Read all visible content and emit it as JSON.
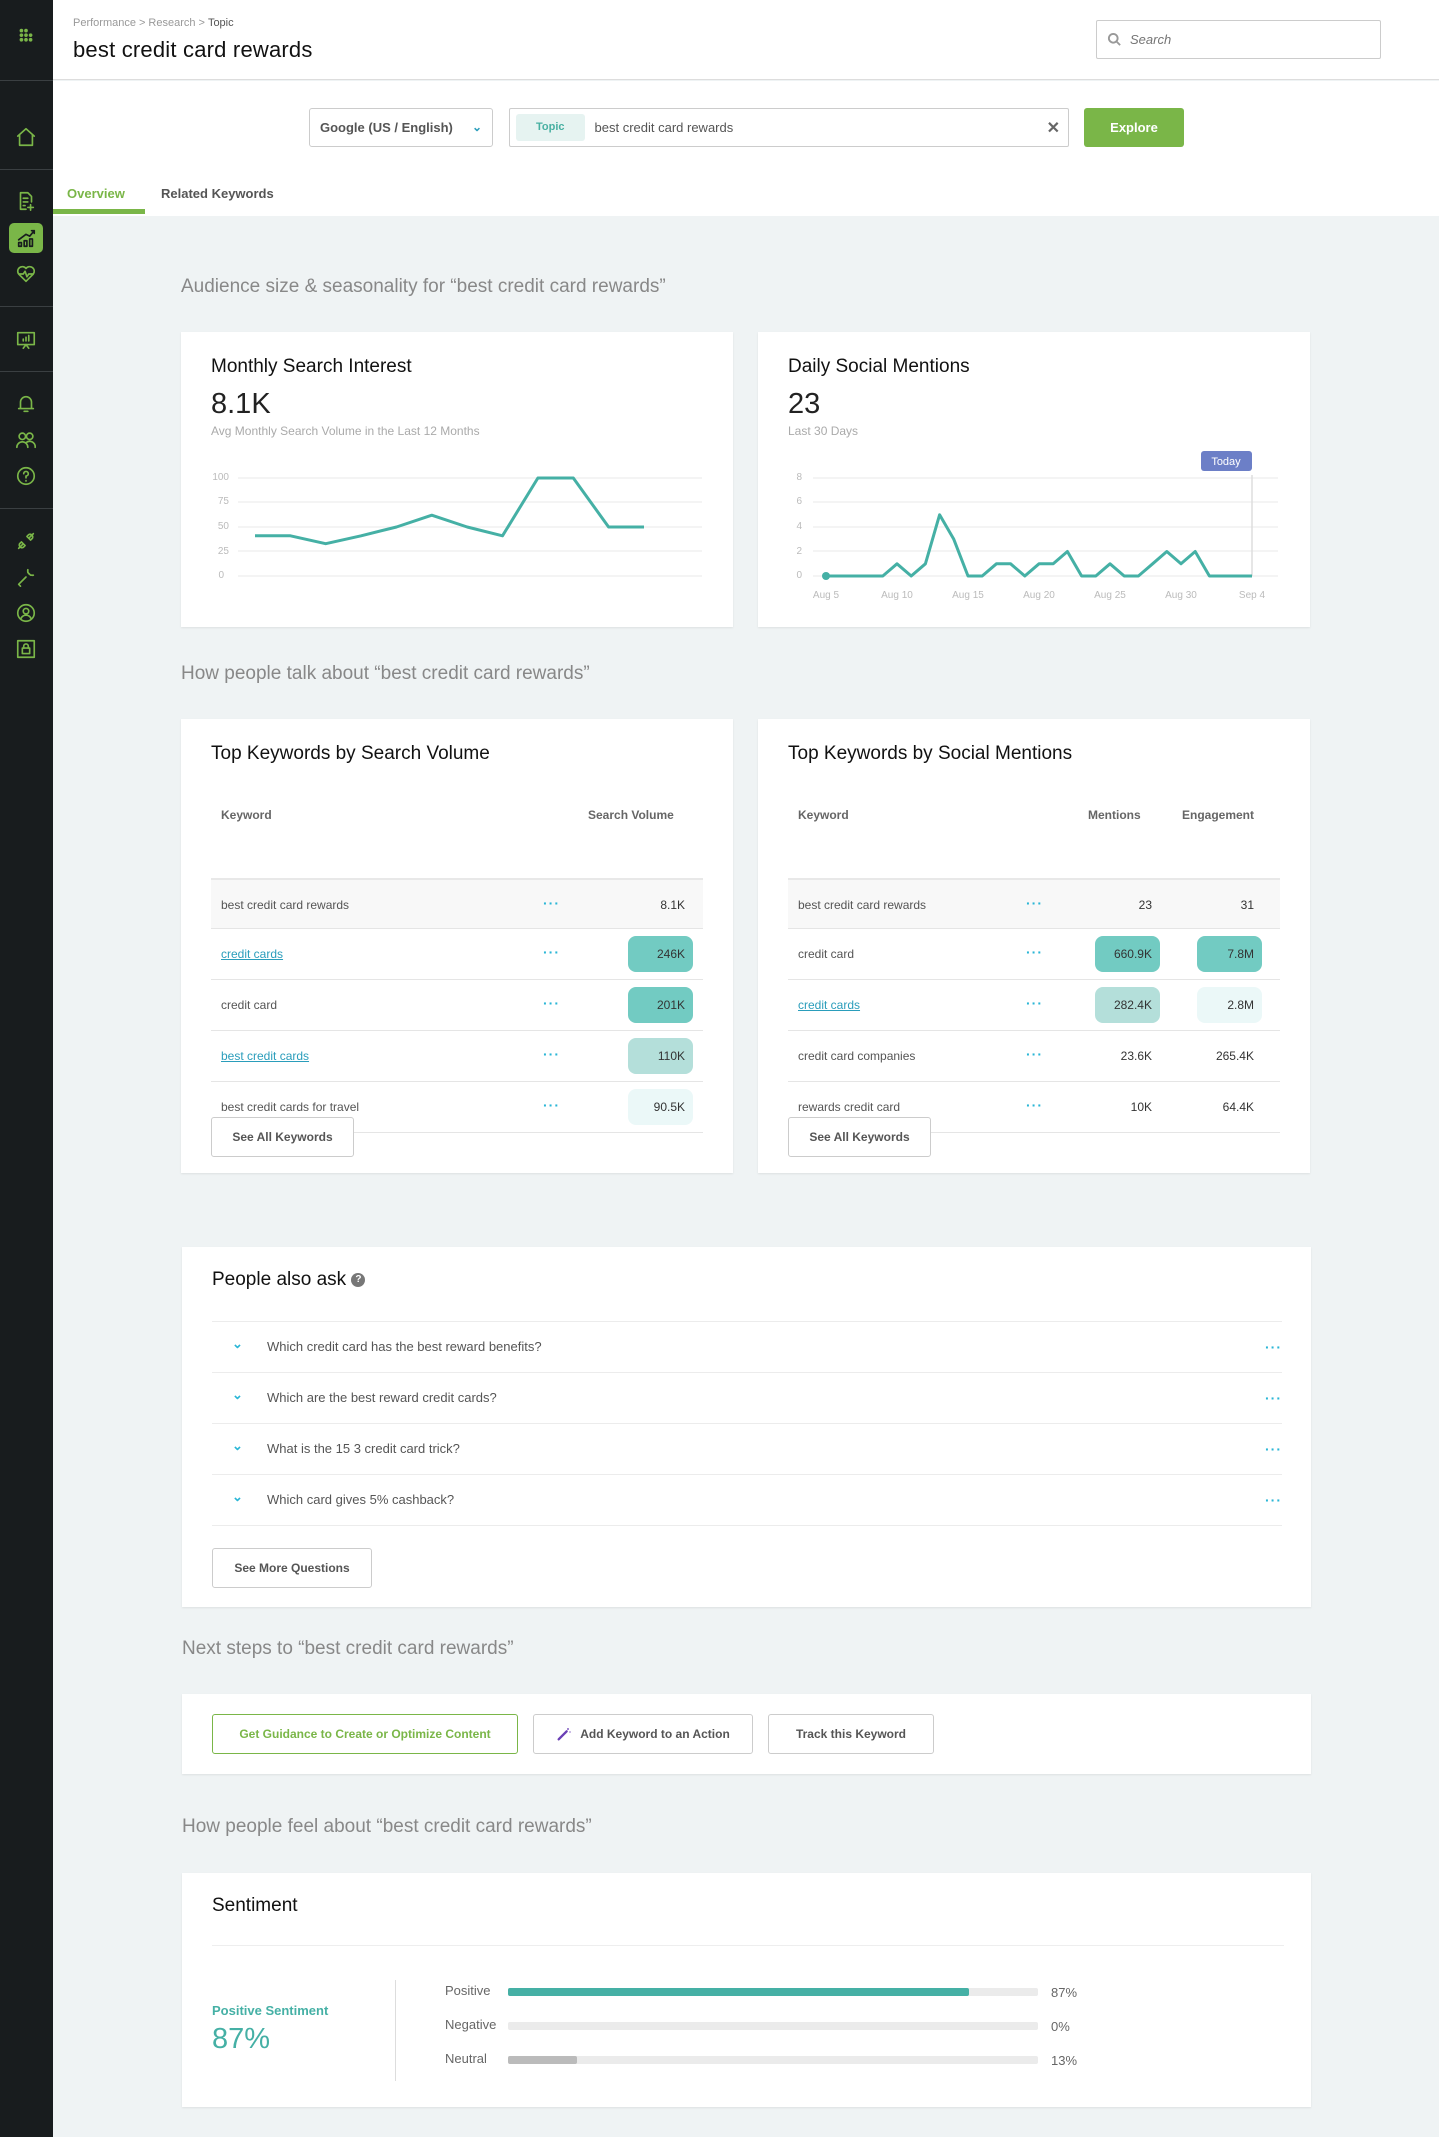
{
  "sidebar": {
    "items": [
      {
        "name": "apps-grid-icon"
      },
      {
        "name": "home-icon"
      },
      {
        "name": "content-doc-icon"
      },
      {
        "name": "research-chart-icon",
        "active": true
      },
      {
        "name": "health-heart-icon"
      },
      {
        "name": "presentation-report-icon"
      },
      {
        "name": "bell-notifications-icon"
      },
      {
        "name": "users-icon"
      },
      {
        "name": "help-question-icon"
      },
      {
        "name": "integrations-plug-icon"
      },
      {
        "name": "settings-wrench-icon"
      },
      {
        "name": "account-user-icon"
      },
      {
        "name": "lock-security-icon"
      }
    ]
  },
  "header": {
    "breadcrumb": [
      "Performance",
      "Research",
      "Topic"
    ],
    "title": "best credit card rewards",
    "search_placeholder": "Search"
  },
  "toolbar": {
    "engine": "Google (US / English)",
    "chip": "Topic",
    "query": "best credit card rewards",
    "explore_label": "Explore",
    "tabs": [
      {
        "label": "Overview",
        "active": true
      },
      {
        "label": "Related Keywords",
        "active": false
      }
    ]
  },
  "sections": {
    "audience": "Audience size & seasonality for “best credit card rewards”",
    "talk": "How people talk about “best credit card rewards”",
    "next": "Next steps to “best credit card rewards”",
    "feel": "How people feel about “best credit card rewards”"
  },
  "monthly": {
    "title": "Monthly Search Interest",
    "value": "8.1K",
    "subtitle": "Avg Monthly Search Volume in the Last 12 Months"
  },
  "daily": {
    "title": "Daily Social Mentions",
    "value": "23",
    "subtitle": "Last 30 Days",
    "today_label": "Today"
  },
  "chart_data": [
    {
      "type": "line",
      "title": "Monthly Search Interest",
      "x": [
        1,
        2,
        3,
        4,
        5,
        6,
        7,
        8,
        9,
        10,
        11,
        12
      ],
      "values": [
        41,
        41,
        33,
        41,
        50,
        62,
        50,
        41,
        100,
        100,
        50,
        50
      ],
      "yticks": [
        0,
        25,
        50,
        75,
        100
      ],
      "ylim": [
        0,
        100
      ],
      "grid": true,
      "color": "#45b0a5"
    },
    {
      "type": "line",
      "title": "Daily Social Mentions",
      "x": [
        "Aug 5",
        "Aug 6",
        "Aug 7",
        "Aug 8",
        "Aug 9",
        "Aug 10",
        "Aug 11",
        "Aug 12",
        "Aug 13",
        "Aug 14",
        "Aug 15",
        "Aug 16",
        "Aug 17",
        "Aug 18",
        "Aug 19",
        "Aug 20",
        "Aug 21",
        "Aug 22",
        "Aug 23",
        "Aug 24",
        "Aug 25",
        "Aug 26",
        "Aug 27",
        "Aug 28",
        "Aug 29",
        "Aug 30",
        "Aug 31",
        "Sep 1",
        "Sep 2",
        "Sep 3",
        "Sep 4"
      ],
      "values": [
        0,
        0,
        0,
        0,
        0,
        1,
        0,
        1,
        5,
        3,
        0,
        0,
        1,
        1,
        0,
        1,
        1,
        2,
        0,
        0,
        1,
        0,
        0,
        1,
        2,
        1,
        2,
        0,
        0,
        0,
        0
      ],
      "xticks": [
        "Aug 5",
        "Aug 10",
        "Aug 15",
        "Aug 20",
        "Aug 25",
        "Aug 30",
        "Sep 4"
      ],
      "yticks": [
        0,
        2,
        4,
        6,
        8
      ],
      "ylim": [
        0,
        8
      ],
      "annotation": "Today",
      "grid": true,
      "color": "#45b0a5"
    }
  ],
  "search_keywords": {
    "title": "Top Keywords by Search Volume",
    "col_keyword": "Keyword",
    "col_volume": "Search Volume",
    "rows": [
      {
        "keyword": "best credit card rewards",
        "volume": "8.1K",
        "link": false,
        "shade": "none"
      },
      {
        "keyword": "credit cards",
        "volume": "246K",
        "link": true,
        "shade": "#72cbc2"
      },
      {
        "keyword": "credit card",
        "volume": "201K",
        "link": false,
        "shade": "#72cbc2"
      },
      {
        "keyword": "best credit cards",
        "volume": "110K",
        "link": true,
        "shade": "#b4dfda"
      },
      {
        "keyword": "best credit cards for travel",
        "volume": "90.5K",
        "link": false,
        "shade": "#ebf8f8"
      }
    ],
    "button": "See All Keywords"
  },
  "social_keywords": {
    "title": "Top Keywords by Social Mentions",
    "col_keyword": "Keyword",
    "col_mentions": "Mentions",
    "col_engagement": "Engagement",
    "rows": [
      {
        "keyword": "best credit card rewards",
        "mentions": "23",
        "engagement": "31",
        "link": false,
        "m_shade": "none",
        "e_shade": "none"
      },
      {
        "keyword": "credit card",
        "mentions": "660.9K",
        "engagement": "7.8M",
        "link": false,
        "m_shade": "#72cbc2",
        "e_shade": "#72cbc2"
      },
      {
        "keyword": "credit cards",
        "mentions": "282.4K",
        "engagement": "2.8M",
        "link": true,
        "m_shade": "#b4dfda",
        "e_shade": "#ebf8f8"
      },
      {
        "keyword": "credit card companies",
        "mentions": "23.6K",
        "engagement": "265.4K",
        "link": false,
        "m_shade": "none",
        "e_shade": "none"
      },
      {
        "keyword": "rewards credit card",
        "mentions": "10K",
        "engagement": "64.4K",
        "link": false,
        "m_shade": "none",
        "e_shade": "none"
      }
    ],
    "button": "See All Keywords"
  },
  "paa": {
    "title": "People also ask",
    "questions": [
      "Which credit card has the best reward benefits?",
      "Which are the best reward credit cards?",
      "What is the 15 3 credit card trick?",
      "Which card gives 5% cashback?"
    ],
    "button": "See More Questions"
  },
  "next_steps": {
    "guidance": "Get Guidance to Create or Optimize Content",
    "add_action": "Add Keyword to an Action",
    "track": "Track this Keyword"
  },
  "sentiment": {
    "title": "Sentiment",
    "summary_label": "Positive Sentiment",
    "summary_value": "87%",
    "bars": [
      {
        "label": "Positive",
        "pct": "87%",
        "value": 87,
        "color": "#45b0a5"
      },
      {
        "label": "Negative",
        "pct": "0%",
        "value": 0,
        "color": "#e57373"
      },
      {
        "label": "Neutral",
        "pct": "13%",
        "value": 13,
        "color": "#bbbbbb"
      }
    ]
  },
  "colors": {
    "brand_green": "#7ab648",
    "teal": "#45b0a5",
    "link_blue": "#2a9dbb",
    "sidebar_bg": "#181c1e",
    "page_bg": "#eff3f4",
    "today_badge": "#6c7fc7"
  }
}
